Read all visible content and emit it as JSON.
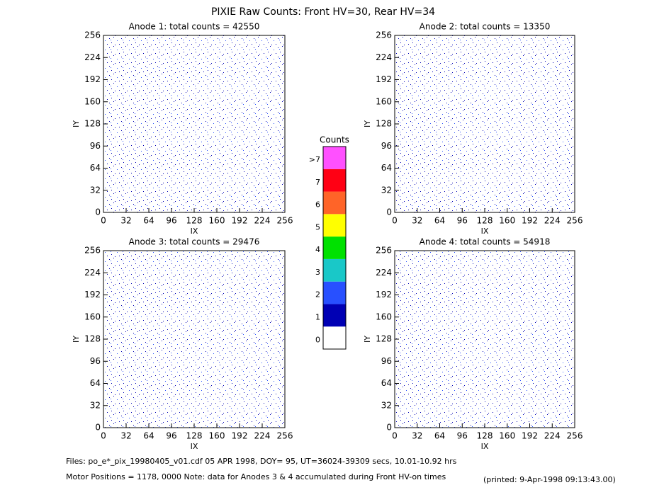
{
  "title": "PIXIE Raw Counts:  Front HV=30, Rear HV=34",
  "chart_data": [
    {
      "type": "heatmap",
      "title": "Anode 1: total counts = 42550",
      "xlabel": "IX",
      "ylabel": "IY",
      "xlim": [
        0,
        256
      ],
      "ylim": [
        0,
        256
      ],
      "xticks": [
        0,
        32,
        64,
        96,
        128,
        160,
        192,
        224,
        256
      ],
      "yticks": [
        0,
        32,
        64,
        96,
        128,
        160,
        192,
        224,
        256
      ]
    },
    {
      "type": "heatmap",
      "title": "Anode 2: total counts = 13350",
      "xlabel": "IX",
      "ylabel": "IY",
      "xlim": [
        0,
        256
      ],
      "ylim": [
        0,
        256
      ],
      "xticks": [
        0,
        32,
        64,
        96,
        128,
        160,
        192,
        224,
        256
      ],
      "yticks": [
        0,
        32,
        64,
        96,
        128,
        160,
        192,
        224,
        256
      ]
    },
    {
      "type": "heatmap",
      "title": "Anode 3: total counts = 29476",
      "xlabel": "IX",
      "ylabel": "IY",
      "xlim": [
        0,
        256
      ],
      "ylim": [
        0,
        256
      ],
      "xticks": [
        0,
        32,
        64,
        96,
        128,
        160,
        192,
        224,
        256
      ],
      "yticks": [
        0,
        32,
        64,
        96,
        128,
        160,
        192,
        224,
        256
      ]
    },
    {
      "type": "heatmap",
      "title": "Anode 4: total counts = 54918",
      "xlabel": "IX",
      "ylabel": "IY",
      "xlim": [
        0,
        256
      ],
      "ylim": [
        0,
        256
      ],
      "xticks": [
        0,
        32,
        64,
        96,
        128,
        160,
        192,
        224,
        256
      ],
      "yticks": [
        0,
        32,
        64,
        96,
        128,
        160,
        192,
        224,
        256
      ]
    }
  ],
  "colorbar": {
    "title": "Counts",
    "ticks": [
      0,
      1,
      2,
      3,
      4,
      5,
      6,
      7,
      {
        "value": 8,
        "label": ">7"
      }
    ],
    "colors": [
      "#ffffff",
      "#0000b4",
      "#2850ff",
      "#19c8c8",
      "#00e100",
      "#ffff00",
      "#ff6428",
      "#ff0014",
      "#ff50ff"
    ]
  },
  "footer": {
    "files": "Files: po_e*_pix_19980405_v01.cdf    05 APR 1998, DOY= 95, UT=36024-39309 secs, 10.01-10.92 hrs",
    "motor": "Motor Positions = 1178, 0000   Note: data for Anodes 3 & 4 accumulated during Front HV-on times",
    "printed": "(printed:  9-Apr-1998 09:13:43.00)"
  }
}
